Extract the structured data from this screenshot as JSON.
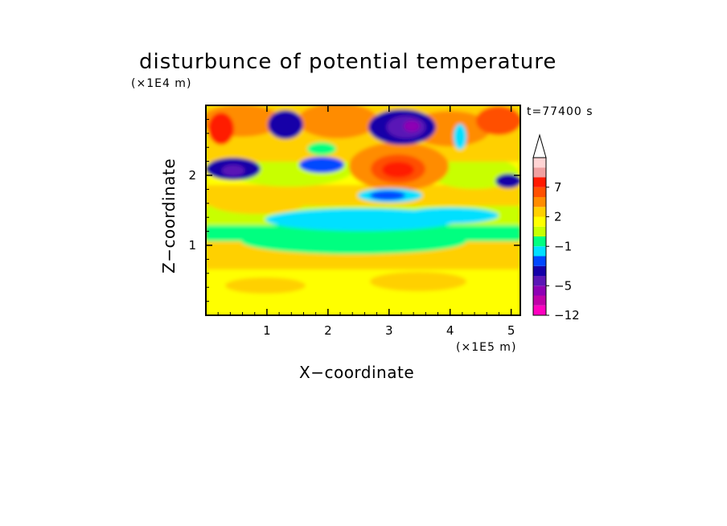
{
  "chart_data": {
    "type": "heatmap",
    "title": "disturbunce of potential temperature",
    "time_label": "t=77400 s",
    "xlabel": "X−coordinate",
    "ylabel": "Z−coordinate",
    "x_unit": "(×1E5 m)",
    "y_unit": "(×1E4 m)",
    "xlim": [
      0,
      5.15
    ],
    "ylim": [
      0,
      3.0
    ],
    "x_ticks": [
      "1",
      "2",
      "3",
      "4",
      "5"
    ],
    "y_ticks": [
      "1",
      "2"
    ],
    "colorbar": {
      "labels": [
        "7",
        "2",
        "−1",
        "−5",
        "−12"
      ],
      "colors": [
        "#ff00c0",
        "#c000a8",
        "#8e00b4",
        "#5a16b6",
        "#1400a8",
        "#0048ff",
        "#00e0ff",
        "#00ff80",
        "#c8ff00",
        "#ffff00",
        "#ffd000",
        "#ff8c00",
        "#ff5000",
        "#ff1a00",
        "#f0a0a0",
        "#ffd4d4"
      ],
      "extend": "max"
    }
  }
}
